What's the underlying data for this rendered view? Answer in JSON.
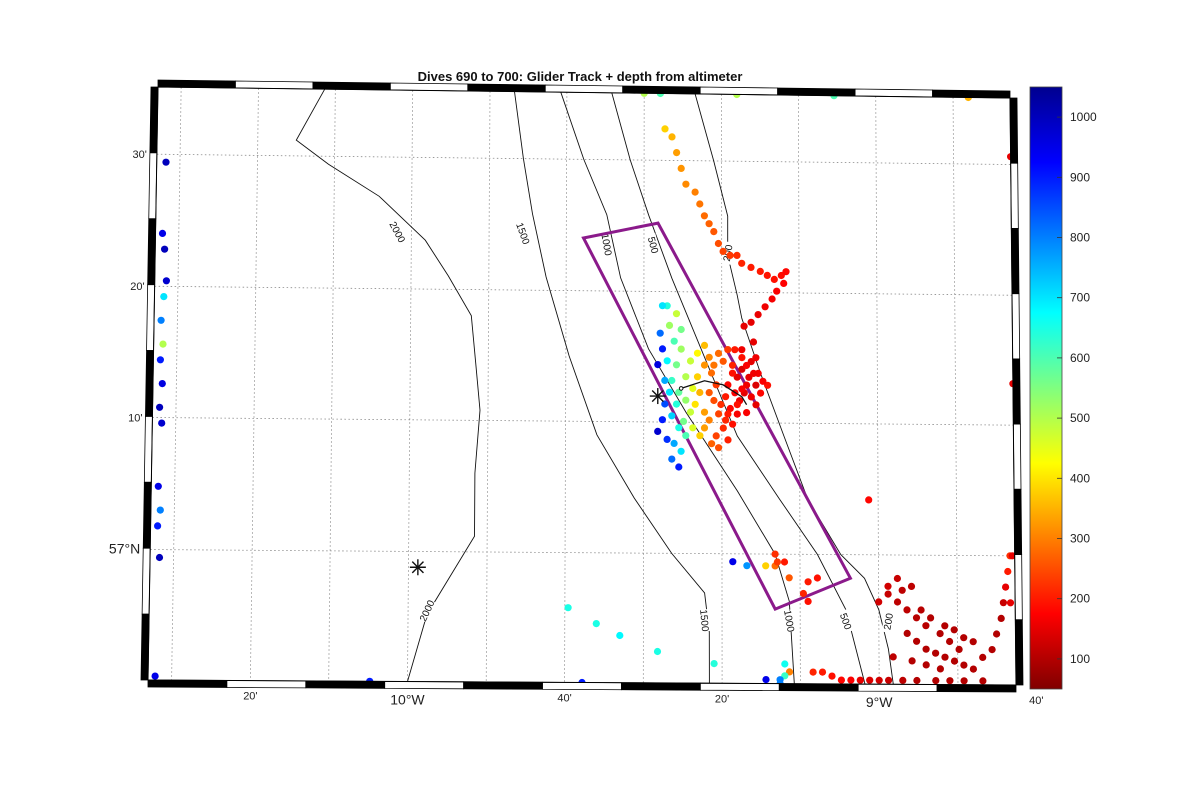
{
  "title": "Dives 690 to 700: Glider Track + depth from altimeter",
  "axes": {
    "x_ticks": [
      {
        "label": "20'",
        "lon": -10.333
      },
      {
        "label": "10°W",
        "lon": -10.0,
        "major": true
      },
      {
        "label": "40'",
        "lon": -9.667
      },
      {
        "label": "20'",
        "lon": -9.333
      },
      {
        "label": "9°W",
        "lon": -9.0,
        "major": true
      },
      {
        "label": "40'",
        "lon": -8.667
      }
    ],
    "y_ticks": [
      {
        "label": "30'",
        "lat": 57.5
      },
      {
        "label": "20'",
        "lat": 57.333
      },
      {
        "label": "10'",
        "lat": 57.167
      },
      {
        "label": "57°N",
        "lat": 57.0,
        "major": true
      }
    ]
  },
  "colorbar": {
    "min": 50,
    "max": 1050,
    "ticks": [
      100,
      200,
      300,
      400,
      500,
      600,
      700,
      800,
      900,
      1000
    ]
  },
  "contour_labels": [
    {
      "text": "2000",
      "lon": -10.03,
      "lat": 57.405,
      "rot": 62
    },
    {
      "text": "1500",
      "lon": -9.76,
      "lat": 57.405,
      "rot": 70
    },
    {
      "text": "1000",
      "lon": -9.58,
      "lat": 57.392,
      "rot": 80
    },
    {
      "text": "500",
      "lon": -9.48,
      "lat": 57.392,
      "rot": 75
    },
    {
      "text": "200",
      "lon": -9.32,
      "lat": 57.383,
      "rot": -80
    },
    {
      "text": "2000",
      "lon": -9.96,
      "lat": 56.925,
      "rot": -65
    },
    {
      "text": "1500",
      "lon": -9.37,
      "lat": 56.915,
      "rot": 85
    },
    {
      "text": "1000",
      "lon": -9.19,
      "lat": 56.915,
      "rot": 80
    },
    {
      "text": "500",
      "lon": -9.07,
      "lat": 56.915,
      "rot": 70
    },
    {
      "text": "200",
      "lon": -8.98,
      "lat": 56.915,
      "rot": -80
    }
  ],
  "markers": [
    {
      "name": "asterisk-west",
      "lon": -9.98,
      "lat": 56.98
    },
    {
      "name": "asterisk-east",
      "lon": -9.47,
      "lat": 57.2
    }
  ],
  "chart_data": {
    "type": "scatter",
    "title": "Dives 690 to 700: Glider Track + depth from altimeter",
    "xlim": [
      -10.55,
      -8.71
    ],
    "ylim": [
      56.835,
      57.585
    ],
    "color_variable": "depth from altimeter",
    "color_range": [
      50,
      1050
    ],
    "colormap": "jet",
    "grid": true,
    "legend": "none",
    "contour_levels": [
      2000,
      1500,
      1000,
      500,
      200
    ],
    "glider_track": [
      [
        -9.42,
        57.21
      ],
      [
        -9.37,
        57.22
      ],
      [
        -9.33,
        57.215
      ],
      [
        -9.29,
        57.2
      ],
      [
        -9.28,
        57.19
      ]
    ],
    "survey_box": [
      [
        -9.63,
        57.4
      ],
      [
        -9.47,
        57.42
      ],
      [
        -9.06,
        56.97
      ],
      [
        -9.22,
        56.93
      ],
      [
        -9.63,
        57.4
      ]
    ],
    "points": [
      [
        -9.455,
        57.54,
        380
      ],
      [
        -9.44,
        57.53,
        350
      ],
      [
        -9.43,
        57.51,
        330
      ],
      [
        -9.42,
        57.49,
        320
      ],
      [
        -9.41,
        57.47,
        310
      ],
      [
        -9.39,
        57.46,
        300
      ],
      [
        -9.38,
        57.445,
        290
      ],
      [
        -9.37,
        57.43,
        280
      ],
      [
        -9.36,
        57.42,
        270
      ],
      [
        -9.35,
        57.41,
        260
      ],
      [
        -9.34,
        57.395,
        250
      ],
      [
        -9.33,
        57.385,
        240
      ],
      [
        -9.315,
        57.38,
        230
      ],
      [
        -9.3,
        57.38,
        220
      ],
      [
        -9.29,
        57.37,
        210
      ],
      [
        -9.27,
        57.365,
        200
      ],
      [
        -9.25,
        57.36,
        200
      ],
      [
        -9.235,
        57.355,
        195
      ],
      [
        -9.22,
        57.35,
        190
      ],
      [
        -9.205,
        57.355,
        185
      ],
      [
        -9.195,
        57.36,
        180
      ],
      [
        -9.2,
        57.345,
        175
      ],
      [
        -9.215,
        57.335,
        170
      ],
      [
        -9.225,
        57.325,
        165
      ],
      [
        -9.24,
        57.315,
        160
      ],
      [
        -9.255,
        57.305,
        155
      ],
      [
        -9.27,
        57.295,
        150
      ],
      [
        -9.285,
        57.29,
        150
      ],
      [
        -9.265,
        57.27,
        150
      ],
      [
        -9.29,
        57.26,
        160
      ],
      [
        -9.27,
        57.245,
        150
      ],
      [
        -9.29,
        57.235,
        140
      ],
      [
        -9.3,
        57.225,
        150
      ],
      [
        -9.28,
        57.215,
        160
      ],
      [
        -9.31,
        57.23,
        190
      ],
      [
        -9.32,
        57.215,
        180
      ],
      [
        -9.305,
        57.205,
        170
      ],
      [
        -9.295,
        57.195,
        160
      ],
      [
        -9.325,
        57.2,
        200
      ],
      [
        -9.335,
        57.19,
        220
      ],
      [
        -9.315,
        57.185,
        180
      ],
      [
        -9.3,
        57.178,
        170
      ],
      [
        -9.285,
        57.205,
        150
      ],
      [
        -9.275,
        57.225,
        150
      ],
      [
        -9.26,
        57.215,
        140
      ],
      [
        -9.345,
        57.215,
        230
      ],
      [
        -9.36,
        57.205,
        260
      ],
      [
        -9.34,
        57.178,
        240
      ],
      [
        -9.325,
        57.17,
        210
      ],
      [
        -9.31,
        57.165,
        190
      ],
      [
        -9.35,
        57.195,
        250
      ],
      [
        -9.355,
        57.23,
        280
      ],
      [
        -9.37,
        57.24,
        320
      ],
      [
        -9.385,
        57.225,
        380
      ],
      [
        -9.38,
        57.205,
        350
      ],
      [
        -9.39,
        57.19,
        400
      ],
      [
        -9.37,
        57.18,
        330
      ],
      [
        -9.36,
        57.17,
        300
      ],
      [
        -9.395,
        57.21,
        450
      ],
      [
        -9.41,
        57.225,
        500
      ],
      [
        -9.4,
        57.245,
        480
      ],
      [
        -9.385,
        57.255,
        420
      ],
      [
        -9.37,
        57.265,
        360
      ],
      [
        -9.42,
        57.26,
        520
      ],
      [
        -9.43,
        57.24,
        560
      ],
      [
        -9.44,
        57.22,
        620
      ],
      [
        -9.425,
        57.205,
        580
      ],
      [
        -9.41,
        57.195,
        530
      ],
      [
        -9.4,
        57.18,
        480
      ],
      [
        -9.415,
        57.168,
        560
      ],
      [
        -9.43,
        57.19,
        640
      ],
      [
        -9.445,
        57.205,
        700
      ],
      [
        -9.455,
        57.22,
        760
      ],
      [
        -9.45,
        57.245,
        680
      ],
      [
        -9.435,
        57.27,
        600
      ],
      [
        -9.42,
        57.285,
        560
      ],
      [
        -9.445,
        57.29,
        520
      ],
      [
        -9.43,
        57.305,
        480
      ],
      [
        -9.45,
        57.315,
        640
      ],
      [
        -9.465,
        57.28,
        820
      ],
      [
        -9.46,
        57.26,
        900
      ],
      [
        -9.47,
        57.24,
        960
      ],
      [
        -9.455,
        57.19,
        850
      ],
      [
        -9.44,
        57.175,
        720
      ],
      [
        -9.425,
        57.16,
        650
      ],
      [
        -9.46,
        57.17,
        900
      ],
      [
        -9.47,
        57.155,
        980
      ],
      [
        -9.45,
        57.145,
        880
      ],
      [
        -9.435,
        57.14,
        760
      ],
      [
        -9.42,
        57.13,
        700
      ],
      [
        -9.44,
        57.12,
        820
      ],
      [
        -9.425,
        57.11,
        900
      ],
      [
        -9.41,
        57.15,
        600
      ],
      [
        -9.395,
        57.16,
        460
      ],
      [
        -9.38,
        57.15,
        380
      ],
      [
        -9.37,
        57.16,
        330
      ],
      [
        -9.46,
        57.315,
        700
      ],
      [
        -9.235,
        57.215,
        190
      ],
      [
        -9.25,
        57.205,
        180
      ],
      [
        -9.245,
        57.22,
        170
      ],
      [
        -9.255,
        57.23,
        165
      ],
      [
        -9.26,
        57.25,
        160
      ],
      [
        -9.33,
        57.245,
        260
      ],
      [
        -9.34,
        57.255,
        280
      ],
      [
        -9.32,
        57.26,
        230
      ],
      [
        -9.31,
        57.24,
        210
      ],
      [
        -9.305,
        57.26,
        200
      ],
      [
        -9.29,
        57.25,
        190
      ],
      [
        -9.28,
        57.24,
        170
      ],
      [
        -9.265,
        57.23,
        160
      ],
      [
        -9.35,
        57.24,
        290
      ],
      [
        -9.36,
        57.25,
        310
      ],
      [
        -9.29,
        57.21,
        170
      ],
      [
        -9.27,
        57.2,
        160
      ],
      [
        -9.26,
        57.19,
        150
      ],
      [
        -9.28,
        57.18,
        170
      ],
      [
        -9.3,
        57.19,
        190
      ],
      [
        -9.32,
        57.178,
        200
      ],
      [
        -9.33,
        57.16,
        215
      ],
      [
        -9.345,
        57.15,
        240
      ],
      [
        -9.355,
        57.14,
        270
      ],
      [
        -9.34,
        57.135,
        250
      ],
      [
        -9.32,
        57.145,
        205
      ],
      [
        -9.31,
        56.99,
        950
      ],
      [
        -9.28,
        56.985,
        780
      ],
      [
        -9.24,
        56.985,
        380
      ],
      [
        -9.22,
        56.985,
        280
      ],
      [
        -9.2,
        56.99,
        200
      ],
      [
        -9.215,
        56.99,
        230
      ],
      [
        -9.19,
        56.97,
        260
      ],
      [
        -9.66,
        56.93,
        650
      ],
      [
        -9.6,
        56.91,
        650
      ],
      [
        -9.55,
        56.895,
        680
      ],
      [
        -9.47,
        56.875,
        650
      ],
      [
        -9.35,
        56.86,
        640
      ],
      [
        -9.2,
        56.86,
        660
      ],
      [
        -9.19,
        56.85,
        300
      ],
      [
        -9.2,
        56.845,
        620
      ],
      [
        -9.21,
        56.84,
        800
      ],
      [
        -9.24,
        56.84,
        950
      ],
      [
        -9.14,
        56.85,
        210
      ],
      [
        -9.12,
        56.85,
        200
      ],
      [
        -9.1,
        56.845,
        190
      ],
      [
        -9.08,
        56.84,
        180
      ],
      [
        -9.06,
        56.84,
        170
      ],
      [
        -9.04,
        56.84,
        150
      ],
      [
        -9.02,
        56.84,
        140
      ],
      [
        -9.0,
        56.84,
        130
      ],
      [
        -8.98,
        56.84,
        120
      ],
      [
        -8.95,
        56.84,
        110
      ],
      [
        -8.92,
        56.84,
        100
      ],
      [
        -8.88,
        56.84,
        100
      ],
      [
        -8.85,
        56.84,
        100
      ],
      [
        -8.82,
        56.84,
        100
      ],
      [
        -8.78,
        56.84,
        100
      ],
      [
        -9.13,
        56.97,
        190
      ],
      [
        -9.15,
        56.965,
        200
      ],
      [
        -9.16,
        56.95,
        210
      ],
      [
        -9.15,
        56.94,
        190
      ],
      [
        -9.02,
        57.07,
        180
      ],
      [
        -9.0,
        56.94,
        130
      ],
      [
        -8.98,
        56.95,
        120
      ],
      [
        -8.96,
        56.94,
        110
      ],
      [
        -8.94,
        56.93,
        110
      ],
      [
        -8.92,
        56.92,
        105
      ],
      [
        -8.9,
        56.91,
        105
      ],
      [
        -8.87,
        56.9,
        100
      ],
      [
        -8.85,
        56.89,
        100
      ],
      [
        -8.83,
        56.88,
        100
      ],
      [
        -8.96,
        56.97,
        120
      ],
      [
        -8.98,
        56.96,
        130
      ],
      [
        -8.95,
        56.955,
        110
      ],
      [
        -8.93,
        56.96,
        110
      ],
      [
        -8.91,
        56.93,
        105
      ],
      [
        -8.89,
        56.92,
        100
      ],
      [
        -8.86,
        56.91,
        100
      ],
      [
        -8.84,
        56.905,
        100
      ],
      [
        -8.82,
        56.895,
        100
      ],
      [
        -8.8,
        56.89,
        100
      ],
      [
        -8.94,
        56.9,
        100
      ],
      [
        -8.92,
        56.89,
        100
      ],
      [
        -8.9,
        56.88,
        100
      ],
      [
        -8.88,
        56.875,
        100
      ],
      [
        -8.86,
        56.87,
        100
      ],
      [
        -8.84,
        56.865,
        100
      ],
      [
        -8.82,
        56.86,
        100
      ],
      [
        -8.8,
        56.855,
        100
      ],
      [
        -8.78,
        56.87,
        100
      ],
      [
        -8.76,
        56.88,
        100
      ],
      [
        -8.75,
        56.9,
        100
      ],
      [
        -8.74,
        56.92,
        100
      ],
      [
        -8.735,
        56.94,
        120
      ],
      [
        -8.73,
        56.96,
        150
      ],
      [
        -8.725,
        56.98,
        200
      ],
      [
        -8.72,
        57.0,
        220
      ],
      [
        -8.9,
        56.86,
        100
      ],
      [
        -8.87,
        56.855,
        100
      ],
      [
        -8.93,
        56.865,
        100
      ],
      [
        -8.97,
        56.87,
        110
      ],
      [
        -9.22,
        57.0,
        220
      ],
      [
        -10.53,
        57.49,
        1000
      ],
      [
        -10.535,
        57.4,
        950
      ],
      [
        -10.53,
        57.38,
        1000
      ],
      [
        -10.525,
        57.34,
        980
      ],
      [
        -10.53,
        57.32,
        700
      ],
      [
        -10.535,
        57.29,
        800
      ],
      [
        -10.53,
        57.26,
        500
      ],
      [
        -10.535,
        57.24,
        900
      ],
      [
        -10.53,
        57.21,
        960
      ],
      [
        -10.535,
        57.18,
        1000
      ],
      [
        -10.53,
        57.16,
        980
      ],
      [
        -10.535,
        57.08,
        950
      ],
      [
        -10.53,
        57.05,
        800
      ],
      [
        -10.535,
        57.03,
        900
      ],
      [
        -10.53,
        56.99,
        1000
      ],
      [
        -10.535,
        56.84,
        950
      ],
      [
        -8.71,
        57.51,
        150
      ],
      [
        -8.71,
        57.22,
        150
      ],
      [
        -8.715,
        57.0,
        150
      ],
      [
        -8.72,
        56.94,
        150
      ],
      [
        -9.465,
        57.585,
        600
      ],
      [
        -9.5,
        57.585,
        500
      ],
      [
        -9.3,
        57.585,
        500
      ],
      [
        -9.09,
        57.585,
        600
      ],
      [
        -8.8,
        57.585,
        350
      ],
      [
        -10.08,
        56.835,
        900
      ],
      [
        -9.63,
        56.835,
        900
      ],
      [
        -9.21,
        56.835,
        800
      ]
    ]
  }
}
